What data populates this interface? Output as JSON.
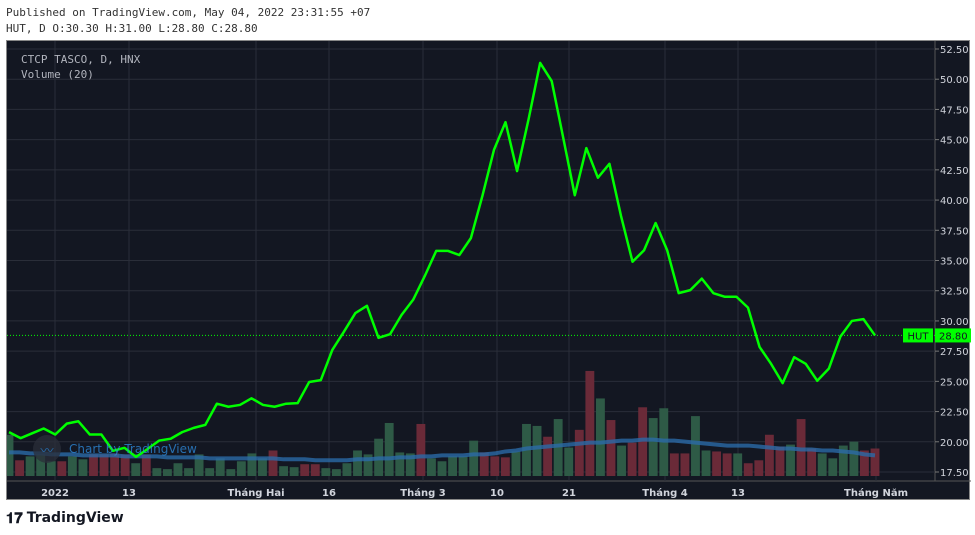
{
  "header": {
    "published": "Published on TradingView.com, May 04, 2022 23:31:55 +07",
    "ohlc": "HUT, D O:30.30 H:31.00 L:28.80 C:28.80"
  },
  "legend": {
    "symbol": "CTCP TASCO, D, HNX",
    "volume": "Volume (20)"
  },
  "watermark": "Chart by TradingView",
  "brand": "TradingView",
  "colors": {
    "background": "#131722",
    "line": "#00ff00",
    "up_volume": "#2e5a46",
    "down_volume": "#6a2a38",
    "volume_ma": "#2a6aa8",
    "grid": "#2a2e39"
  },
  "chart_data": {
    "type": "line",
    "title": "CTCP TASCO, D, HNX",
    "ylim": [
      17.5,
      52.5
    ],
    "y_ticks": [
      "52.50",
      "50.00",
      "47.50",
      "45.00",
      "42.50",
      "40.00",
      "37.50",
      "35.00",
      "32.50",
      "30.00",
      "27.50",
      "25.00",
      "22.50",
      "20.00",
      "17.50"
    ],
    "x_ticks": [
      "2022",
      "13",
      "Tháng Hai",
      "16",
      "Tháng 3",
      "10",
      "21",
      "Tháng 4",
      "13",
      "Tháng Năm"
    ],
    "last_price": {
      "symbol": "HUT",
      "value": "28.80"
    },
    "close": [
      20.8,
      20.3,
      20.7,
      21.1,
      20.6,
      21.5,
      21.7,
      20.6,
      20.6,
      19.25,
      19.5,
      18.75,
      19.4,
      20.1,
      20.25,
      20.8,
      21.15,
      21.4,
      23.15,
      22.9,
      23.05,
      23.6,
      23.05,
      22.9,
      23.15,
      23.2,
      24.95,
      25.1,
      27.6,
      29.1,
      30.65,
      31.25,
      28.6,
      28.9,
      30.5,
      31.75,
      33.7,
      35.8,
      35.8,
      35.45,
      36.85,
      40.35,
      44.15,
      46.45,
      42.4,
      46.7,
      51.35,
      49.85,
      45.15,
      40.4,
      44.3,
      41.85,
      43.0,
      38.7,
      34.9,
      35.85,
      38.1,
      35.85,
      32.3,
      32.55,
      33.5,
      32.3,
      32.0,
      32.0,
      31.1,
      27.85,
      26.45,
      24.85,
      27.0,
      26.45,
      25.05,
      26.05,
      28.7,
      30.0,
      30.15,
      28.8
    ],
    "volume": {
      "values": [
        42,
        16,
        20,
        22,
        15,
        15,
        20,
        17,
        22,
        22,
        23,
        22,
        13,
        22,
        8,
        7,
        13,
        8,
        22,
        8,
        18,
        7,
        15,
        23,
        18,
        26,
        10,
        9,
        12,
        12,
        8,
        7,
        13,
        26,
        22,
        38,
        54,
        24,
        23,
        53,
        18,
        15,
        20,
        20,
        36,
        24,
        20,
        19,
        25,
        53,
        51,
        40,
        58,
        29,
        47,
        107,
        79,
        57,
        31,
        34,
        70,
        59,
        69,
        23,
        23,
        61,
        26,
        25,
        23,
        23,
        13,
        16,
        42,
        30,
        32,
        58,
        28,
        23,
        18,
        31,
        35,
        26,
        28
      ],
      "direction": [
        "up",
        "down",
        "up",
        "up",
        "up",
        "down",
        "up",
        "up",
        "down",
        "down",
        "down",
        "down",
        "up",
        "down",
        "up",
        "up",
        "up",
        "up",
        "up",
        "up",
        "up",
        "up",
        "up",
        "up",
        "up",
        "down",
        "up",
        "up",
        "down",
        "down",
        "up",
        "up",
        "up",
        "up",
        "up",
        "up",
        "up",
        "up",
        "up",
        "down",
        "up",
        "up",
        "up",
        "up",
        "up",
        "down",
        "down",
        "down",
        "up",
        "up",
        "up",
        "down",
        "up",
        "up",
        "down",
        "down",
        "up",
        "down",
        "up",
        "down",
        "down",
        "up",
        "up",
        "down",
        "down",
        "up",
        "up",
        "down",
        "down",
        "up",
        "down",
        "down",
        "down",
        "down",
        "up",
        "down",
        "down",
        "up",
        "up",
        "up",
        "up",
        "down",
        "down"
      ],
      "ma": [
        24,
        24,
        23,
        23,
        22,
        22,
        22,
        21,
        21,
        21,
        21,
        20,
        20,
        20,
        20,
        19,
        19,
        19,
        19,
        18,
        18,
        18,
        18,
        18,
        18,
        18,
        17,
        17,
        17,
        16,
        16,
        16,
        16,
        17,
        17,
        18,
        18,
        19,
        19,
        20,
        20,
        21,
        21,
        21,
        22,
        22,
        23,
        25,
        26,
        28,
        29,
        30,
        31,
        32,
        33,
        34,
        34,
        35,
        36,
        36,
        37,
        37,
        36,
        36,
        35,
        34,
        33,
        32,
        31,
        31,
        31,
        30,
        29,
        28,
        28,
        27,
        27,
        26,
        26,
        25,
        24,
        22,
        21
      ]
    }
  }
}
